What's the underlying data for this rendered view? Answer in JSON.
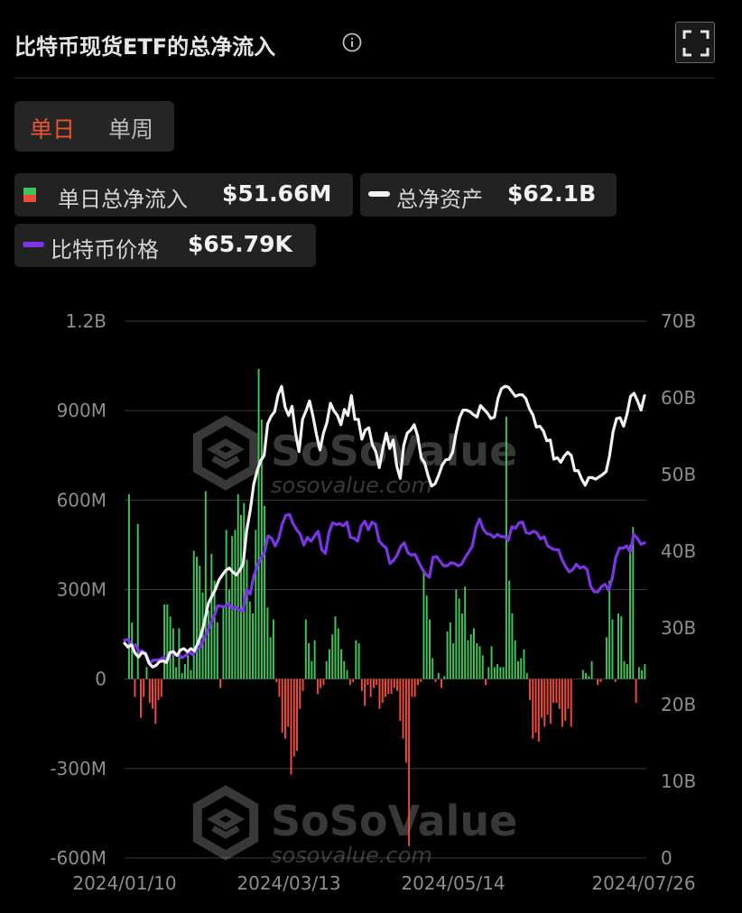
{
  "header": {
    "title": "比特币现货ETF的总净流入",
    "info_icon": "info-circle-icon",
    "expand_icon": "fullscreen-expand-icon"
  },
  "tabs": [
    {
      "label": "单日",
      "active": true
    },
    {
      "label": "单周",
      "active": false
    }
  ],
  "legend": {
    "flow": {
      "label": "单日总净流入",
      "value": "$51.66M"
    },
    "assets": {
      "label": "总净资产",
      "value": "$62.1B"
    },
    "price": {
      "label": "比特币价格",
      "value": "$65.79K"
    }
  },
  "watermark": {
    "brand": "SoSoValue",
    "url": "sosovalue.com"
  },
  "colors": {
    "background": "#000000",
    "inflow": "#3fc35a",
    "outflow": "#ef4a3a",
    "assets_line": "#f2f2f2",
    "price_line": "#7b35e6",
    "active_tab": "#f0522b",
    "gridline": "#3a3a3a"
  },
  "chart_data": {
    "type": "bar",
    "left_axis": {
      "ylim": [
        -600000000,
        1200000000
      ],
      "tick_labels": [
        "-600M",
        "-300M",
        "0",
        "300M",
        "600M",
        "900M",
        "1.2B"
      ],
      "tick_values": [
        -600000000,
        -300000000,
        0,
        300000000,
        600000000,
        900000000,
        1200000000
      ]
    },
    "right_axis": {
      "ylim": [
        0,
        70000000000
      ],
      "tick_labels": [
        "0",
        "10B",
        "20B",
        "30B",
        "40B",
        "50B",
        "60B",
        "70B"
      ],
      "tick_values": [
        0,
        10000000000,
        20000000000,
        30000000000,
        40000000000,
        50000000000,
        60000000000,
        70000000000
      ]
    },
    "x_tick_labels": [
      "2024/01/10",
      "2024/03/13",
      "2024/05/14",
      "2024/07/26"
    ],
    "grid": true,
    "series": [
      {
        "name": "单日总净流入",
        "type": "bar",
        "axis": "left",
        "unit": "USD M",
        "values": [
          0,
          620,
          190,
          -60,
          520,
          -130,
          -60,
          40,
          -80,
          -100,
          -150,
          -70,
          -60,
          250,
          250,
          210,
          170,
          40,
          170,
          20,
          50,
          80,
          30,
          430,
          410,
          380,
          290,
          630,
          230,
          420,
          330,
          190,
          -30,
          240,
          500,
          300,
          480,
          500,
          620,
          550,
          590,
          400,
          260,
          220,
          500,
          1040,
          870,
          580,
          240,
          140,
          200,
          -10,
          -60,
          -180,
          -200,
          -160,
          -320,
          -260,
          -240,
          -100,
          -40,
          200,
          120,
          60,
          130,
          -50,
          -30,
          -20,
          60,
          100,
          150,
          210,
          170,
          100,
          60,
          30,
          -20,
          -10,
          130,
          120,
          -40,
          -90,
          -20,
          -60,
          -30,
          -20,
          -100,
          -80,
          -60,
          -50,
          -50,
          -30,
          -40,
          -140,
          -200,
          -280,
          -560,
          -60,
          -60,
          -20,
          -10,
          360,
          280,
          200,
          70,
          -10,
          20,
          -30,
          10,
          160,
          190,
          120,
          300,
          270,
          220,
          310,
          130,
          150,
          170,
          120,
          110,
          80,
          -20,
          40,
          110,
          40,
          50,
          40,
          40,
          880,
          330,
          220,
          130,
          60,
          70,
          100,
          20,
          -70,
          -200,
          -180,
          -210,
          -130,
          -160,
          -120,
          -150,
          -80,
          -80,
          -100,
          -160,
          -140,
          -100,
          -160,
          0,
          0,
          0,
          30,
          20,
          10,
          60,
          0,
          -20,
          -10,
          0,
          140,
          330,
          200,
          -10,
          220,
          210,
          60,
          50,
          450,
          510,
          -80,
          40,
          30,
          50
        ]
      },
      {
        "name": "总净资产",
        "type": "line",
        "axis": "right",
        "unit": "USD B",
        "values": [
          28.0,
          27.5,
          27.8,
          26.7,
          26.2,
          26.8,
          26.6,
          25.4,
          24.9,
          25.1,
          25.6,
          25.7,
          25.5,
          26.8,
          26.9,
          26.4,
          27.1,
          27.3,
          26.9,
          27.3,
          27.0,
          28.0,
          29.2,
          31.0,
          33.2,
          34.1,
          35.0,
          36.2,
          36.9,
          37.5,
          37.8,
          37.3,
          36.9,
          37.5,
          38.4,
          42.7,
          45.3,
          48.7,
          50.5,
          51.8,
          52.5,
          56.6,
          57.6,
          58.2,
          60.4,
          61.5,
          58.8,
          57.7,
          58.9,
          55.4,
          53.0,
          57.2,
          58.3,
          59.6,
          57.6,
          55.2,
          53.2,
          55.4,
          56.8,
          59.3,
          58.3,
          57.7,
          56.5,
          58.5,
          57.7,
          60.3,
          57.2,
          57.2,
          54.6,
          55.8,
          56.1,
          53.9,
          53.0,
          50.9,
          53.4,
          55.4,
          53.4,
          54.5,
          51.1,
          49.5,
          53.8,
          55.4,
          55.8,
          56.5,
          55.0,
          52.2,
          51.5,
          49.8,
          48.5,
          48.8,
          49.9,
          51.2,
          51.9,
          52.0,
          52.9,
          55.4,
          57.4,
          58.4,
          58.4,
          58.2,
          57.8,
          57.5,
          59.0,
          58.5,
          58.0,
          57.3,
          57.5,
          59.9,
          61.2,
          61.5,
          61.4,
          60.8,
          60.2,
          60.4,
          60.4,
          59.9,
          58.6,
          57.8,
          56.2,
          56.3,
          55.7,
          54.4,
          54.5,
          52.0,
          52.2,
          51.6,
          52.4,
          52.9,
          52.5,
          50.5,
          50.5,
          49.4,
          48.6,
          49.6,
          49.6,
          49.4,
          49.7,
          50.0,
          50.4,
          52.5,
          55.6,
          57.3,
          57.4,
          56.3,
          57.9,
          60.2,
          60.6,
          59.6,
          58.4,
          60.3
        ]
      },
      {
        "name": "比特币价格",
        "type": "line",
        "axis": "right",
        "unit": "USD B-axis scale",
        "values": [
          28.4,
          28.5,
          27.6,
          27.8,
          26.9,
          27.0,
          26.6,
          25.4,
          25.8,
          25.8,
          25.9,
          26.2,
          25.8,
          26.9,
          26.5,
          26.6,
          26.1,
          26.4,
          26.9,
          26.5,
          27.1,
          27.4,
          28.5,
          29.4,
          30.6,
          31.6,
          32.9,
          32.8,
          32.8,
          33.2,
          32.5,
          32.7,
          32.3,
          32.2,
          35.0,
          34.4,
          36.7,
          38.1,
          39.1,
          39.8,
          42.0,
          41.7,
          40.7,
          41.7,
          43.6,
          44.7,
          44.8,
          43.6,
          42.8,
          42.2,
          40.8,
          41.8,
          41.3,
          42.0,
          42.6,
          40.2,
          39.7,
          42.4,
          43.7,
          43.5,
          43.6,
          43.3,
          43.8,
          41.8,
          41.7,
          41.3,
          43.3,
          43.9,
          42.8,
          43.8,
          43.5,
          41.3,
          40.8,
          40.4,
          38.4,
          38.8,
          39.5,
          40.6,
          41.1,
          39.8,
          39.5,
          39.6,
          38.6,
          37.7,
          37.0,
          36.6,
          39.2,
          39.3,
          38.7,
          38.1,
          38.1,
          38.5,
          38.4,
          38.1,
          38.3,
          39.2,
          39.9,
          40.7,
          43.1,
          44.2,
          42.9,
          42.3,
          42.2,
          41.8,
          42.2,
          41.9,
          41.9,
          41.4,
          43.2,
          43.0,
          43.7,
          43.8,
          42.4,
          42.3,
          42.6,
          42.4,
          41.6,
          41.9,
          40.7,
          40.4,
          40.2,
          40.2,
          38.9,
          38.0,
          37.3,
          37.6,
          38.3,
          37.8,
          38.0,
          37.6,
          35.4,
          34.7,
          34.7,
          35.4,
          35.7,
          34.9,
          36.5,
          39.2,
          40.4,
          40.4,
          40.7,
          39.9,
          42.2,
          41.7,
          40.9,
          41.1
        ]
      }
    ]
  }
}
